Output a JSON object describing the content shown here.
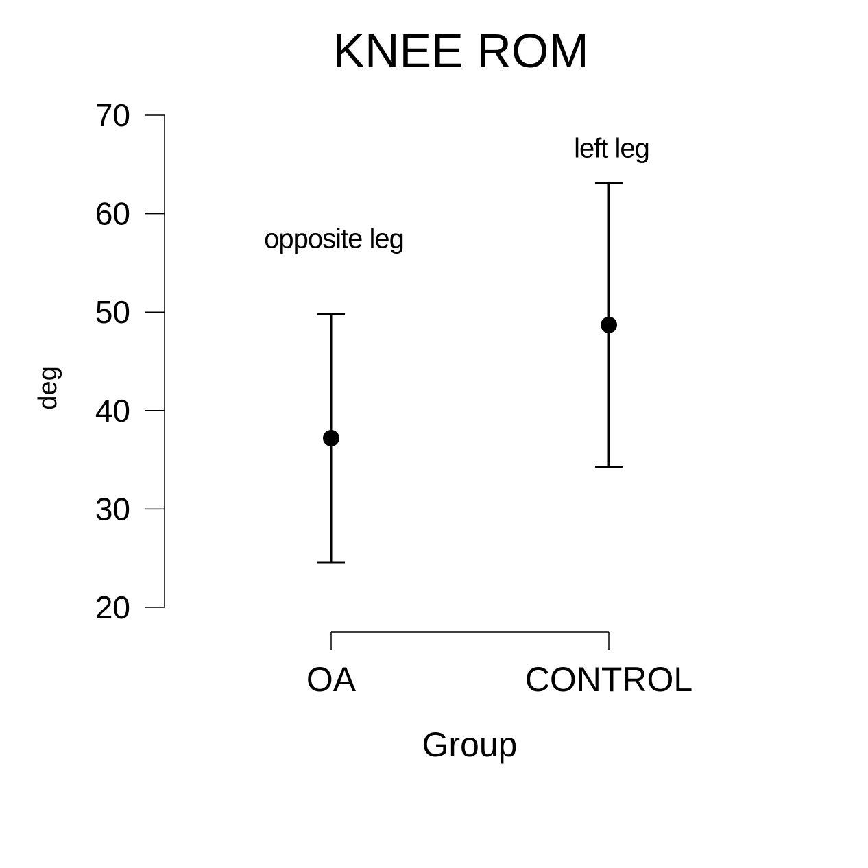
{
  "chart_data": {
    "type": "scatter",
    "title": "KNEE ROM",
    "xlabel": "Group",
    "ylabel": "deg",
    "ylim": [
      20,
      70
    ],
    "yticks": [
      20,
      30,
      40,
      50,
      60,
      70
    ],
    "categories": [
      "OA",
      "CONTROL"
    ],
    "series": [
      {
        "values": [
          37.2,
          48.7
        ],
        "lower": [
          24.6,
          34.3
        ],
        "upper": [
          49.8,
          63.1
        ]
      }
    ],
    "annotations": [
      {
        "category": "OA",
        "y": 57.5,
        "text": "opposite leg"
      },
      {
        "category": "CONTROL",
        "y": 66.7,
        "text": "left leg"
      }
    ],
    "grid": false,
    "legend": "none",
    "colors": {
      "mark": "#000000",
      "axis": "#000000",
      "background": "#ffffff"
    }
  }
}
